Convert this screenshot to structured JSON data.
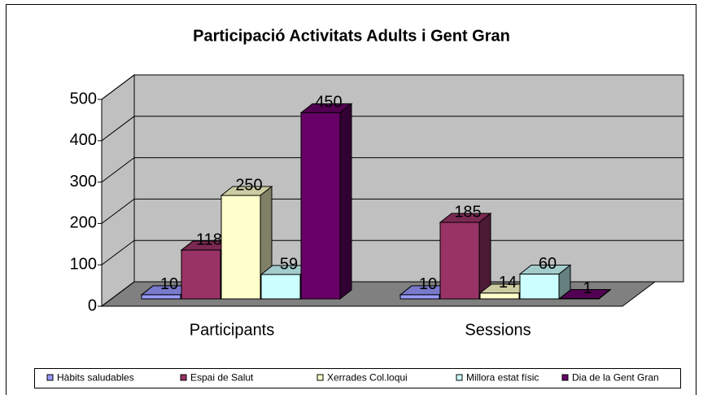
{
  "chart_data": {
    "type": "bar3d",
    "title": "Participació Activitats Adults i Gent Gran",
    "categories": [
      "Participants",
      "Sessions"
    ],
    "series": [
      {
        "name": "Hàbits saludables",
        "color": "#9999ff",
        "values": [
          10,
          10
        ]
      },
      {
        "name": "Espai de Salut",
        "color": "#993366",
        "values": [
          118,
          185
        ]
      },
      {
        "name": "Xerrades Col.loqui",
        "color": "#ffffcc",
        "values": [
          250,
          14
        ]
      },
      {
        "name": "Millora estat físic",
        "color": "#ccffff",
        "values": [
          59,
          60
        ]
      },
      {
        "name": "Dia de la Gent Gran",
        "color": "#660066",
        "values": [
          450,
          1
        ]
      }
    ],
    "ylim": [
      0,
      500
    ],
    "yticks": [
      0,
      100,
      200,
      300,
      400,
      500
    ],
    "grid": true,
    "legend": "bottom"
  }
}
